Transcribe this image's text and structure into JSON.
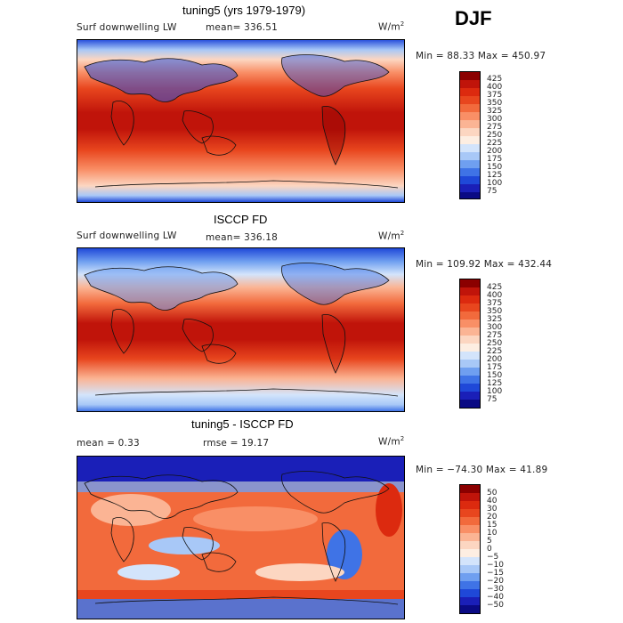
{
  "season": "DJF",
  "panels": [
    {
      "title": "tuning5 (yrs 1979-1979)",
      "variable": "Surf downwelling LW",
      "mean": "mean= 336.51",
      "units": "W/m",
      "units_sup": "2",
      "minmax": "Min =  88.33 Max = 450.97",
      "colorbar_labels": [
        "425",
        "400",
        "375",
        "350",
        "325",
        "300",
        "275",
        "250",
        "225",
        "200",
        "175",
        "150",
        "125",
        "100",
        "75"
      ],
      "colorbar_colors": [
        "#8b0000",
        "#c0140a",
        "#dc2a0f",
        "#e8461e",
        "#f26a3c",
        "#f98f66",
        "#fbb494",
        "#fcd6c1",
        "#fdeee2",
        "#d3e4fb",
        "#a8c8f7",
        "#6f9ff0",
        "#3f73e6",
        "#1f48d8",
        "#1a1fb8",
        "#0a0a84"
      ]
    },
    {
      "title": "ISCCP FD",
      "variable": "Surf downwelling LW",
      "mean": "mean= 336.18",
      "units": "W/m",
      "units_sup": "2",
      "minmax": "Min = 109.92 Max = 432.44",
      "colorbar_labels": [
        "425",
        "400",
        "375",
        "350",
        "325",
        "300",
        "275",
        "250",
        "225",
        "200",
        "175",
        "150",
        "125",
        "100",
        "75"
      ],
      "colorbar_colors": [
        "#8b0000",
        "#c0140a",
        "#dc2a0f",
        "#e8461e",
        "#f26a3c",
        "#f98f66",
        "#fbb494",
        "#fcd6c1",
        "#fdeee2",
        "#d3e4fb",
        "#a8c8f7",
        "#6f9ff0",
        "#3f73e6",
        "#1f48d8",
        "#1a1fb8",
        "#0a0a84"
      ]
    },
    {
      "title": "tuning5 - ISCCP FD",
      "mean": "mean =    0.33",
      "rmse": "rmse =   19.17",
      "units": "W/m",
      "units_sup": "2",
      "minmax": "Min = −74.30 Max =   41.89",
      "colorbar_labels": [
        "50",
        "40",
        "30",
        "20",
        "15",
        "10",
        "5",
        "0",
        "−5",
        "−10",
        "−15",
        "−20",
        "−30",
        "−40",
        "−50"
      ],
      "colorbar_colors": [
        "#8b0000",
        "#c0140a",
        "#dc2a0f",
        "#e8461e",
        "#f26a3c",
        "#f98f66",
        "#fbb494",
        "#fcd6c1",
        "#fdeee2",
        "#d3e4fb",
        "#a8c8f7",
        "#6f9ff0",
        "#3f73e6",
        "#1f48d8",
        "#1a1fb8",
        "#0a0a84"
      ]
    }
  ]
}
